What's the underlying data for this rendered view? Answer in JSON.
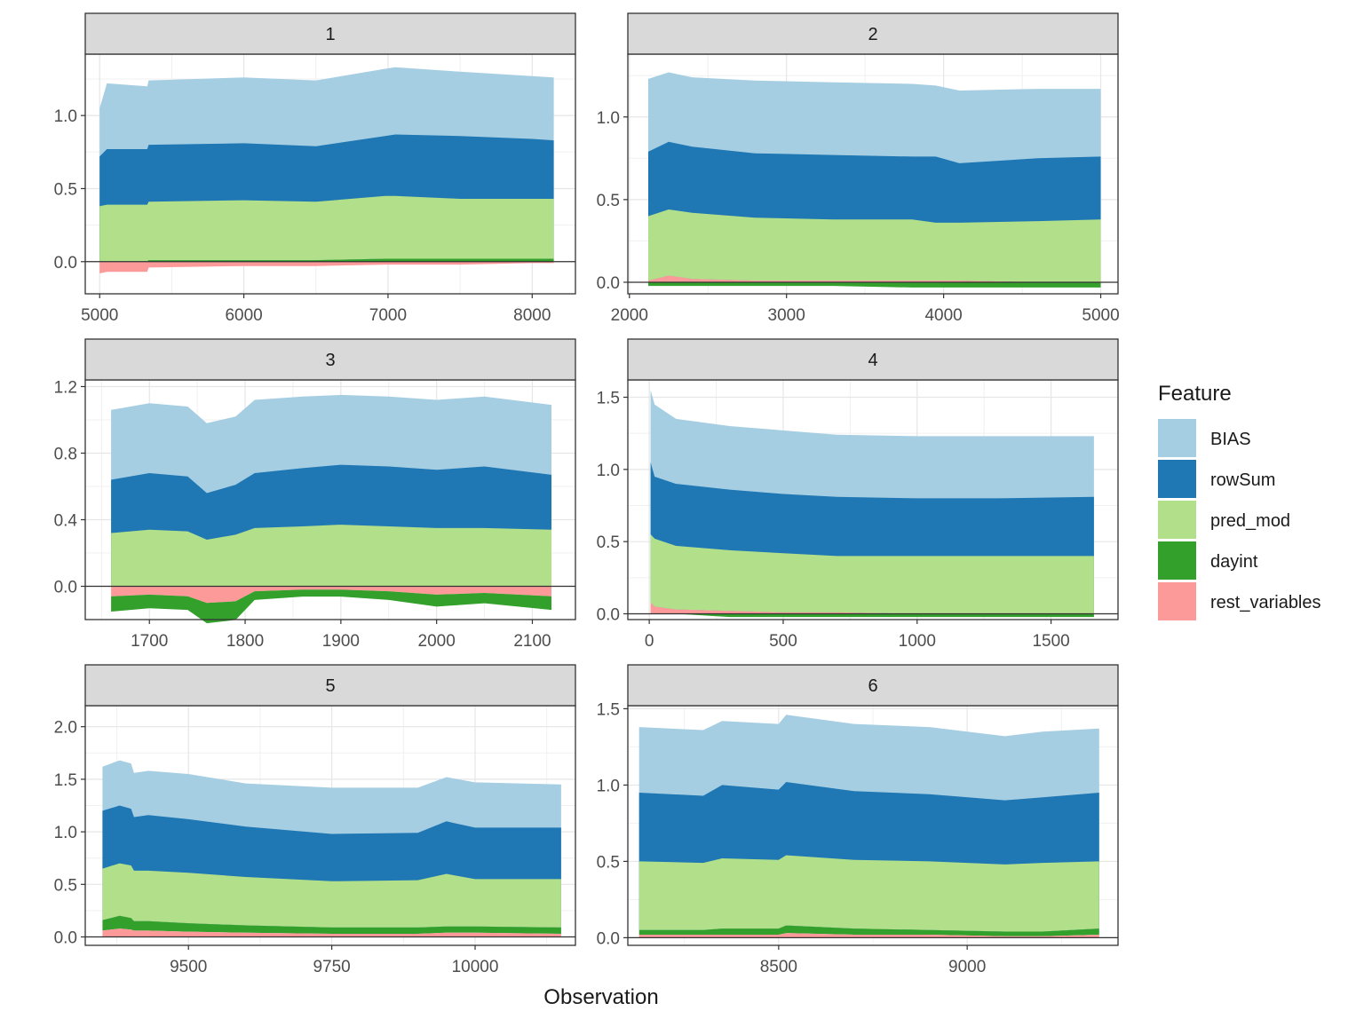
{
  "chart_data": {
    "type": "area",
    "subtype": "stacked SHAP contribution plot, faceted 3x2",
    "xlabel": "Observation",
    "ylabel": "",
    "legend": {
      "title": "Feature",
      "position": "right",
      "entries": [
        {
          "name": "BIAS",
          "color": "#A6CEE3"
        },
        {
          "name": "rowSum",
          "color": "#1F78B4"
        },
        {
          "name": "pred_mod",
          "color": "#B2DF8A"
        },
        {
          "name": "dayint",
          "color": "#33A02C"
        },
        {
          "name": "rest_variables",
          "color": "#FB9A99"
        }
      ]
    },
    "grid": true,
    "facets": [
      {
        "label": "1",
        "xlim": [
          4900,
          8300
        ],
        "ylim": [
          -0.22,
          1.42
        ],
        "xticks": [
          5000,
          6000,
          7000,
          8000
        ],
        "xtick_labels": [
          "5000",
          "6000",
          "7000",
          "8000"
        ],
        "yticks": [
          0,
          0.5,
          1
        ],
        "ytick_labels": [
          "0.0",
          "0.5",
          "1.0"
        ],
        "x": [
          5000,
          5050,
          5330,
          5340,
          6000,
          6500,
          6980,
          7050,
          7500,
          8000,
          8150
        ],
        "bias": [
          1.05,
          1.22,
          1.2,
          1.24,
          1.26,
          1.24,
          1.32,
          1.33,
          1.3,
          1.27,
          1.26
        ],
        "rowSum": [
          0.72,
          0.77,
          0.77,
          0.8,
          0.81,
          0.79,
          0.86,
          0.87,
          0.86,
          0.84,
          0.83
        ],
        "pred_mod": [
          0.38,
          0.39,
          0.39,
          0.41,
          0.42,
          0.41,
          0.45,
          0.45,
          0.43,
          0.43,
          0.43
        ],
        "dayint": [
          0.0,
          0.0,
          0.0,
          0.01,
          0.01,
          0.01,
          0.02,
          0.02,
          0.02,
          0.02,
          0.02
        ],
        "rest_variables": [
          -0.08,
          -0.07,
          -0.07,
          -0.04,
          -0.03,
          -0.03,
          -0.02,
          -0.02,
          -0.02,
          -0.01,
          -0.01
        ]
      },
      {
        "label": "2",
        "xlim": [
          1990,
          5110
        ],
        "ylim": [
          -0.07,
          1.38
        ],
        "xticks": [
          2000,
          3000,
          4000,
          5000
        ],
        "xtick_labels": [
          "2000",
          "3000",
          "4000",
          "5000"
        ],
        "yticks": [
          0,
          0.5,
          1
        ],
        "ytick_labels": [
          "0.0",
          "0.5",
          "1.0"
        ],
        "x": [
          2120,
          2250,
          2400,
          2800,
          3300,
          3800,
          3950,
          4100,
          4600,
          5000
        ],
        "bias": [
          1.23,
          1.27,
          1.24,
          1.22,
          1.21,
          1.2,
          1.19,
          1.16,
          1.17,
          1.17
        ],
        "rowSum": [
          0.79,
          0.85,
          0.82,
          0.78,
          0.77,
          0.76,
          0.76,
          0.72,
          0.75,
          0.76
        ],
        "pred_mod": [
          0.4,
          0.44,
          0.42,
          0.39,
          0.38,
          0.38,
          0.36,
          0.36,
          0.37,
          0.38
        ],
        "dayint": [
          -0.01,
          -0.01,
          -0.01,
          -0.01,
          -0.01,
          -0.02,
          -0.02,
          -0.02,
          -0.02,
          -0.02
        ],
        "rest_variables": [
          0.01,
          0.04,
          0.02,
          0.01,
          0.01,
          0.01,
          0.01,
          0.01,
          0.0,
          0.0
        ]
      },
      {
        "label": "3",
        "xlim": [
          1633,
          2145
        ],
        "ylim": [
          -0.2,
          1.24
        ],
        "xticks": [
          1700,
          1800,
          1900,
          2000,
          2100
        ],
        "xtick_labels": [
          "1700",
          "1800",
          "1900",
          "2000",
          "2100"
        ],
        "yticks": [
          0,
          0.4,
          0.8,
          1.2
        ],
        "ytick_labels": [
          "0.0",
          "0.4",
          "0.8",
          "1.2"
        ],
        "x": [
          1660,
          1700,
          1740,
          1760,
          1790,
          1810,
          1860,
          1900,
          1950,
          2000,
          2050,
          2120
        ],
        "bias": [
          1.06,
          1.1,
          1.08,
          0.98,
          1.02,
          1.12,
          1.14,
          1.15,
          1.14,
          1.12,
          1.14,
          1.09
        ],
        "rowSum": [
          0.64,
          0.68,
          0.66,
          0.56,
          0.61,
          0.68,
          0.71,
          0.73,
          0.72,
          0.7,
          0.72,
          0.67
        ],
        "pred_mod": [
          0.32,
          0.34,
          0.33,
          0.28,
          0.31,
          0.35,
          0.36,
          0.37,
          0.36,
          0.35,
          0.35,
          0.34
        ],
        "dayint": [
          -0.08,
          -0.07,
          -0.07,
          -0.11,
          -0.1,
          -0.04,
          -0.03,
          -0.03,
          -0.04,
          -0.06,
          -0.05,
          -0.07
        ],
        "rest_variables": [
          -0.06,
          -0.05,
          -0.06,
          -0.1,
          -0.09,
          -0.03,
          -0.02,
          -0.02,
          -0.03,
          -0.05,
          -0.04,
          -0.06
        ]
      },
      {
        "label": "4",
        "xlim": [
          -80,
          1750
        ],
        "ylim": [
          -0.04,
          1.62
        ],
        "xticks": [
          0,
          500,
          1000,
          1500
        ],
        "xtick_labels": [
          "0",
          "500",
          "1000",
          "1500"
        ],
        "yticks": [
          0,
          0.5,
          1,
          1.5
        ],
        "ytick_labels": [
          "0.0",
          "0.5",
          "1.0",
          "1.5"
        ],
        "x": [
          5,
          20,
          100,
          300,
          500,
          700,
          1000,
          1300,
          1660
        ],
        "bias": [
          1.55,
          1.45,
          1.35,
          1.3,
          1.27,
          1.24,
          1.23,
          1.23,
          1.23
        ],
        "rowSum": [
          1.05,
          0.95,
          0.9,
          0.86,
          0.83,
          0.81,
          0.8,
          0.8,
          0.81
        ],
        "pred_mod": [
          0.55,
          0.52,
          0.47,
          0.44,
          0.42,
          0.4,
          0.4,
          0.4,
          0.4
        ],
        "dayint": [
          0.0,
          0.0,
          0.0,
          -0.01,
          -0.01,
          -0.01,
          -0.01,
          -0.01,
          -0.01
        ],
        "rest_variables": [
          0.08,
          0.05,
          0.03,
          0.02,
          0.01,
          0.01,
          0.0,
          0.0,
          0.0
        ]
      },
      {
        "label": "5",
        "xlim": [
          9320,
          10175
        ],
        "ylim": [
          -0.08,
          2.2
        ],
        "xticks": [
          9500,
          9750,
          10000
        ],
        "xtick_labels": [
          "9500",
          "9750",
          "10000"
        ],
        "yticks": [
          0,
          0.5,
          1,
          1.5,
          2
        ],
        "ytick_labels": [
          "0.0",
          "0.5",
          "1.0",
          "1.5",
          "2.0"
        ],
        "x": [
          9350,
          9380,
          9400,
          9405,
          9430,
          9500,
          9600,
          9750,
          9900,
          9950,
          10000,
          10150
        ],
        "bias": [
          1.62,
          1.68,
          1.65,
          1.56,
          1.58,
          1.55,
          1.46,
          1.42,
          1.42,
          1.52,
          1.47,
          1.45
        ],
        "rowSum": [
          1.2,
          1.25,
          1.22,
          1.14,
          1.16,
          1.12,
          1.05,
          0.98,
          0.99,
          1.1,
          1.04,
          1.04
        ],
        "pred_mod": [
          0.65,
          0.7,
          0.68,
          0.63,
          0.63,
          0.61,
          0.57,
          0.53,
          0.54,
          0.6,
          0.55,
          0.55
        ],
        "dayint": [
          0.1,
          0.12,
          0.11,
          0.09,
          0.09,
          0.08,
          0.07,
          0.06,
          0.06,
          0.06,
          0.06,
          0.06
        ],
        "rest_variables": [
          0.06,
          0.08,
          0.07,
          0.06,
          0.06,
          0.05,
          0.04,
          0.03,
          0.03,
          0.04,
          0.04,
          0.03
        ]
      },
      {
        "label": "6",
        "xlim": [
          8100,
          9400
        ],
        "ylim": [
          -0.05,
          1.52
        ],
        "xticks": [
          8500,
          9000
        ],
        "xtick_labels": [
          "8500",
          "9000"
        ],
        "yticks": [
          0,
          0.5,
          1,
          1.5
        ],
        "ytick_labels": [
          "0.0",
          "0.5",
          "1.0",
          "1.5"
        ],
        "x": [
          8130,
          8300,
          8350,
          8500,
          8520,
          8700,
          8900,
          9100,
          9200,
          9350
        ],
        "bias": [
          1.38,
          1.36,
          1.42,
          1.4,
          1.46,
          1.4,
          1.38,
          1.32,
          1.35,
          1.37
        ],
        "rowSum": [
          0.95,
          0.93,
          1.0,
          0.97,
          1.02,
          0.96,
          0.94,
          0.9,
          0.92,
          0.95
        ],
        "pred_mod": [
          0.5,
          0.49,
          0.52,
          0.51,
          0.54,
          0.51,
          0.5,
          0.48,
          0.49,
          0.5
        ],
        "dayint": [
          0.03,
          0.03,
          0.04,
          0.04,
          0.05,
          0.04,
          0.03,
          0.03,
          0.03,
          0.04
        ],
        "rest_variables": [
          0.02,
          0.02,
          0.02,
          0.02,
          0.03,
          0.02,
          0.02,
          0.01,
          0.01,
          0.02
        ]
      }
    ]
  }
}
